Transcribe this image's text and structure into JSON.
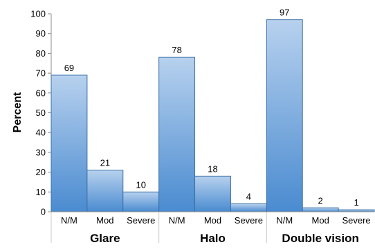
{
  "chart_data": {
    "type": "bar",
    "title": "",
    "ylabel": "Percent",
    "xlabel": "",
    "ylim": [
      0,
      100
    ],
    "yticks": [
      0,
      10,
      20,
      30,
      40,
      50,
      60,
      70,
      80,
      90,
      100
    ],
    "grid": false,
    "legend": "none",
    "bar_color": "#5b96d2",
    "groups": [
      {
        "name": "Glare",
        "categories": [
          "N/M",
          "Mod",
          "Severe"
        ],
        "values": [
          69,
          21,
          10
        ]
      },
      {
        "name": "Halo",
        "categories": [
          "N/M",
          "Mod",
          "Severe"
        ],
        "values": [
          78,
          18,
          4
        ]
      },
      {
        "name": "Double vision",
        "categories": [
          "N/M",
          "Mod",
          "Severe"
        ],
        "values": [
          97,
          2,
          1
        ]
      }
    ]
  }
}
